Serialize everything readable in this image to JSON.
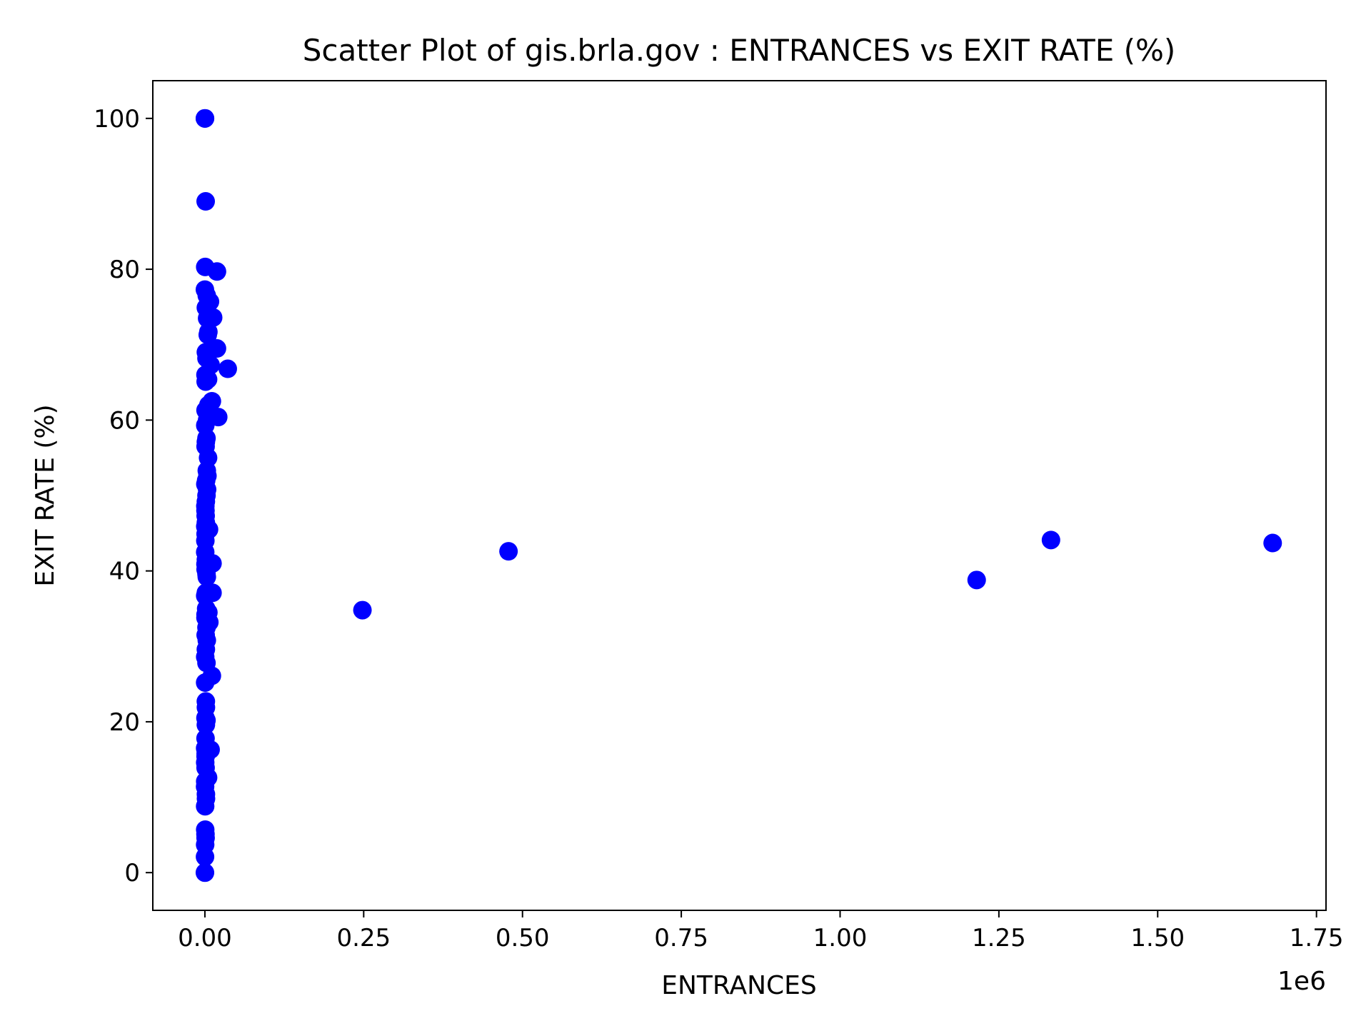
{
  "chart_data": {
    "type": "scatter",
    "title": "Scatter Plot of gis.brla.gov : ENTRANCES vs EXIT RATE (%)",
    "xlabel": "ENTRANCES",
    "ylabel": "EXIT RATE (%)",
    "x_offset_label": "1e6",
    "xlim": [
      -82000,
      1765000
    ],
    "ylim": [
      -5,
      105
    ],
    "x_ticks": [
      0,
      250000,
      500000,
      750000,
      1000000,
      1250000,
      1500000,
      1750000
    ],
    "x_tick_labels": [
      "0.00",
      "0.25",
      "0.50",
      "0.75",
      "1.00",
      "1.25",
      "1.50",
      "1.75"
    ],
    "y_ticks": [
      0,
      20,
      40,
      60,
      80,
      100
    ],
    "y_tick_labels": [
      "0",
      "20",
      "40",
      "60",
      "80",
      "100"
    ],
    "grid": false,
    "marker_color": "#0000ff",
    "series": [
      {
        "x": [
          0,
          200,
          100,
          1200,
          500,
          0,
          3000,
          8000,
          1500,
          3500,
          5500,
          19000,
          4500,
          2500,
          9000,
          13000,
          1500,
          19000,
          5000,
          1200,
          900,
          36000,
          5500,
          11000,
          1000,
          8000,
          3500,
          21000,
          600,
          2500,
          1500,
          1100,
          5000,
          3000,
          4000,
          2000,
          700,
          3500,
          2500,
          1500,
          700,
          900,
          1200,
          1500,
          600,
          6500,
          1100,
          700,
          500,
          1500,
          900,
          1100,
          2500,
          12000,
          3000,
          1500,
          500,
          12000,
          2000,
          1000,
          900,
          7000,
          2500,
          5500,
          1200,
          3000,
          1500,
          500,
          2500,
          11000,
          400,
          1500,
          1600,
          900,
          2500,
          1500,
          1000,
          400,
          1200,
          1100,
          9000,
          500,
          1100,
          5000,
          500,
          300,
          1600,
          1700,
          400,
          500,
          900,
          1100,
          400,
          200,
          100,
          0,
          248000,
          478000,
          1215000,
          1332000,
          1681000
        ],
        "y": [
          100,
          100,
          100,
          89,
          80.3,
          77.3,
          76.5,
          75.7,
          74.9,
          73.5,
          71.7,
          79.7,
          71.3,
          68.2,
          67.3,
          73.6,
          69.0,
          69.5,
          65.4,
          65.1,
          66.0,
          66.8,
          62.0,
          62.5,
          61.3,
          61.0,
          60.0,
          60.4,
          59.3,
          57.6,
          57.1,
          56.5,
          55.0,
          53.3,
          52.6,
          52.0,
          51.5,
          50.8,
          50.0,
          49.2,
          48.6,
          48.0,
          47.3,
          46.4,
          45.9,
          45.5,
          44.9,
          44.0,
          42.5,
          41.5,
          40.9,
          40.2,
          39.6,
          41.0,
          39.2,
          37.1,
          36.7,
          37.1,
          35.0,
          34.2,
          33.8,
          33.2,
          32.5,
          34.5,
          31.5,
          30.8,
          29.6,
          28.6,
          27.8,
          26.1,
          25.2,
          22.7,
          21.9,
          20.5,
          20.2,
          19.6,
          17.8,
          16.5,
          15.8,
          15.4,
          16.3,
          14.6,
          13.9,
          12.6,
          12.1,
          11.4,
          10.4,
          9.8,
          8.8,
          5.7,
          5.1,
          4.6,
          3.7,
          2.1,
          0,
          0,
          34.8,
          42.6,
          38.8,
          44.1,
          43.7
        ]
      }
    ]
  }
}
